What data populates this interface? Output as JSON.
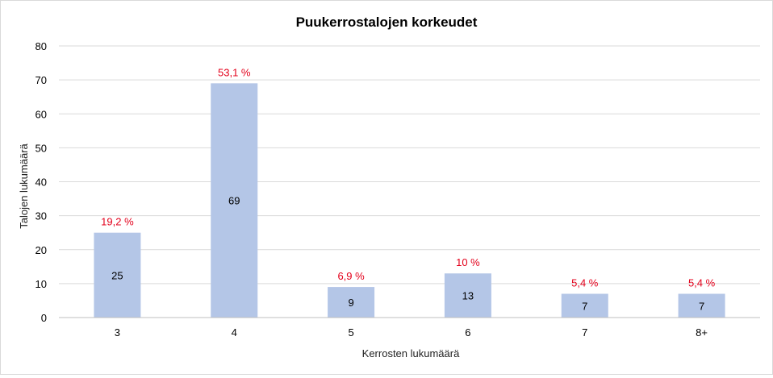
{
  "chart_data": {
    "type": "bar",
    "title": "Puukerrostalojen korkeudet",
    "xlabel": "Kerrosten lukumäärä",
    "ylabel": "Talojen lukumäärä",
    "categories": [
      "3",
      "4",
      "5",
      "6",
      "7",
      "8+"
    ],
    "values": [
      25,
      69,
      9,
      13,
      7,
      7
    ],
    "percent_labels": [
      "19,2 %",
      "53,1 %",
      "6,9 %",
      "10 %",
      "5,4 %",
      "5,4 %"
    ],
    "ylim": [
      0,
      80
    ],
    "yticks": [
      "0",
      "10",
      "20",
      "30",
      "40",
      "50",
      "60",
      "70",
      "80"
    ],
    "grid": true,
    "bar_color": "#b4c6e7",
    "percent_color": "#e3001b"
  }
}
